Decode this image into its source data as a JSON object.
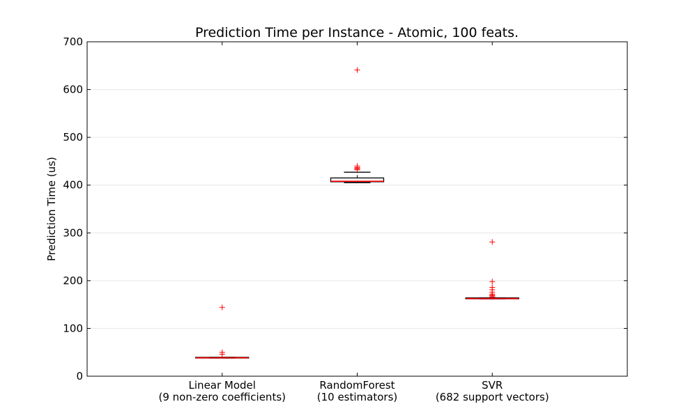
{
  "chart_data": {
    "type": "box",
    "title": "Prediction Time per Instance - Atomic, 100 feats.",
    "xlabel": "",
    "ylabel": "Prediction Time (us)",
    "ylim": [
      0,
      700
    ],
    "yticks": [
      0,
      100,
      200,
      300,
      400,
      500,
      600,
      700
    ],
    "grid": "horizontal",
    "categories": [
      {
        "line1": "Linear Model",
        "line2": "(9 non-zero coefficients)"
      },
      {
        "line1": "RandomForest",
        "line2": "(10 estimators)"
      },
      {
        "line1": "SVR",
        "line2": "(682 support vectors)"
      }
    ],
    "boxes": [
      {
        "whisker_low": 38,
        "q1": 38,
        "median": 38.5,
        "q3": 39.5,
        "whisker_high": 39.5,
        "outliers": [
          144,
          50,
          46
        ]
      },
      {
        "whisker_low": 405,
        "q1": 407,
        "median": 408,
        "q3": 415,
        "whisker_high": 427,
        "outliers": [
          641,
          440,
          437,
          436,
          434,
          432
        ]
      },
      {
        "whisker_low": 162,
        "q1": 162,
        "median": 162.5,
        "q3": 164,
        "whisker_high": 164,
        "outliers": [
          281,
          198,
          186,
          181,
          176,
          172,
          170,
          168,
          166
        ]
      }
    ],
    "colors": {
      "box": "#000000",
      "median": "#ff0000",
      "outlier": "#ff0000",
      "grid": "#e6e6e6"
    }
  }
}
